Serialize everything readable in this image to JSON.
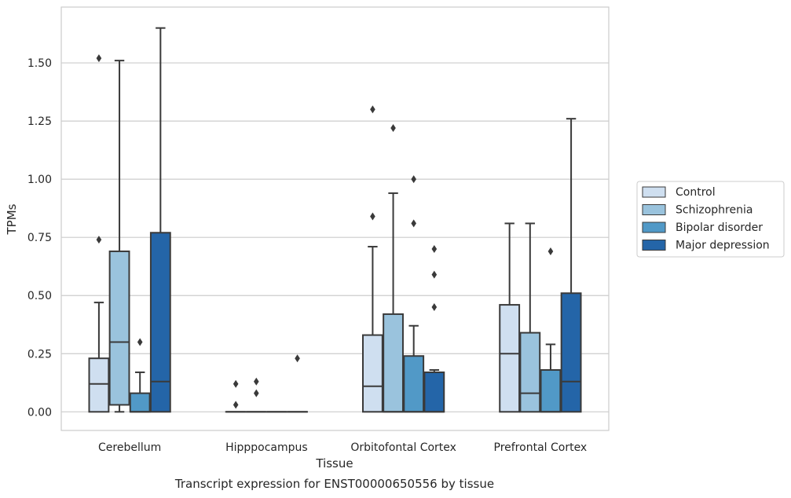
{
  "chart_data": {
    "type": "box",
    "title": "",
    "caption": "Transcript expression for ENST00000650556 by tissue",
    "xlabel": "Tissue",
    "ylabel": "TPMs",
    "ylim": [
      -0.08,
      1.74
    ],
    "yticks": [
      0.0,
      0.25,
      0.5,
      0.75,
      1.0,
      1.25,
      1.5
    ],
    "ytick_labels": [
      "0.00",
      "0.25",
      "0.50",
      "0.75",
      "1.00",
      "1.25",
      "1.50"
    ],
    "grid": "horizontal",
    "legend_position": "right",
    "categories": [
      "Cerebellum",
      "Hipppocampus",
      "Orbitofontal Cortex",
      "Prefrontal Cortex"
    ],
    "series": [
      {
        "name": "Control",
        "color": "#cfdff0",
        "boxes": [
          {
            "whislo": 0.0,
            "q1": 0.0,
            "med": 0.12,
            "q3": 0.23,
            "whishi": 0.47,
            "fliers": [
              0.74,
              1.52
            ]
          },
          {
            "whislo": 0.0,
            "q1": 0.0,
            "med": 0.0,
            "q3": 0.0,
            "whishi": 0.0,
            "fliers": [
              0.03,
              0.12
            ]
          },
          {
            "whislo": 0.0,
            "q1": 0.0,
            "med": 0.11,
            "q3": 0.33,
            "whishi": 0.71,
            "fliers": [
              0.84,
              1.3
            ]
          },
          {
            "whislo": 0.0,
            "q1": 0.0,
            "med": 0.25,
            "q3": 0.46,
            "whishi": 0.81,
            "fliers": []
          }
        ]
      },
      {
        "name": "Schizophrenia",
        "color": "#9ac3dd",
        "boxes": [
          {
            "whislo": 0.0,
            "q1": 0.03,
            "med": 0.3,
            "q3": 0.69,
            "whishi": 1.51,
            "fliers": []
          },
          {
            "whislo": 0.0,
            "q1": 0.0,
            "med": 0.0,
            "q3": 0.0,
            "whishi": 0.0,
            "fliers": [
              0.08,
              0.13
            ]
          },
          {
            "whislo": 0.0,
            "q1": 0.0,
            "med": 0.0,
            "q3": 0.42,
            "whishi": 0.94,
            "fliers": [
              1.22
            ]
          },
          {
            "whislo": 0.0,
            "q1": 0.0,
            "med": 0.08,
            "q3": 0.34,
            "whishi": 0.81,
            "fliers": []
          }
        ]
      },
      {
        "name": "Bipolar disorder",
        "color": "#5199c7",
        "boxes": [
          {
            "whislo": 0.0,
            "q1": 0.0,
            "med": 0.0,
            "q3": 0.08,
            "whishi": 0.17,
            "fliers": [
              0.3
            ]
          },
          {
            "whislo": 0.0,
            "q1": 0.0,
            "med": 0.0,
            "q3": 0.0,
            "whishi": 0.0,
            "fliers": []
          },
          {
            "whislo": 0.0,
            "q1": 0.0,
            "med": 0.0,
            "q3": 0.24,
            "whishi": 0.37,
            "fliers": [
              0.81,
              1.0
            ]
          },
          {
            "whislo": 0.0,
            "q1": 0.0,
            "med": 0.0,
            "q3": 0.18,
            "whishi": 0.29,
            "fliers": [
              0.69
            ]
          }
        ]
      },
      {
        "name": "Major depression",
        "color": "#2465a8",
        "boxes": [
          {
            "whislo": 0.0,
            "q1": 0.0,
            "med": 0.13,
            "q3": 0.77,
            "whishi": 1.65,
            "fliers": []
          },
          {
            "whislo": 0.0,
            "q1": 0.0,
            "med": 0.0,
            "q3": 0.0,
            "whishi": 0.0,
            "fliers": [
              0.23
            ]
          },
          {
            "whislo": 0.0,
            "q1": 0.0,
            "med": 0.0,
            "q3": 0.17,
            "whishi": 0.18,
            "fliers": [
              0.45,
              0.59,
              0.7
            ]
          },
          {
            "whislo": 0.0,
            "q1": 0.0,
            "med": 0.13,
            "q3": 0.51,
            "whishi": 1.26,
            "fliers": []
          }
        ]
      }
    ]
  }
}
